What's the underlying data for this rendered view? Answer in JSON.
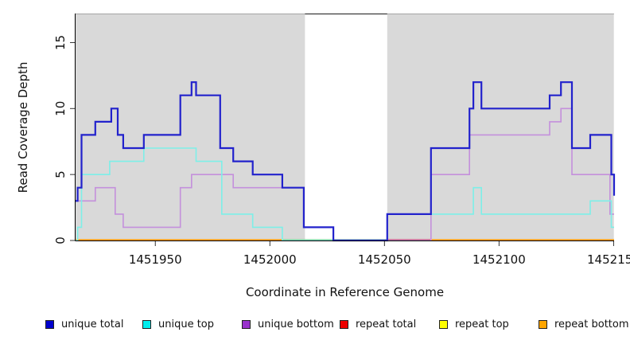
{
  "axes": {
    "x_label": "Coordinate in Reference Genome",
    "y_label": "Read Coverage Depth",
    "x_tick_labels": [
      "1451950",
      "1452000",
      "1452050",
      "1452100",
      "1452150"
    ],
    "x_tick_values": [
      1451950,
      1452000,
      1452050,
      1452100,
      1452150
    ],
    "y_tick_labels": [
      "0",
      "5",
      "10",
      "15"
    ],
    "y_tick_values": [
      0,
      5,
      10,
      15
    ]
  },
  "legend": {
    "items": [
      {
        "label": "unique total",
        "color": "#0000CD"
      },
      {
        "label": "unique top",
        "color": "#00EEEE"
      },
      {
        "label": "unique bottom",
        "color": "#9932CC"
      },
      {
        "label": "repeat total",
        "color": "#EE0000"
      },
      {
        "label": "repeat top",
        "color": "#FFFF00"
      },
      {
        "label": "repeat bottom",
        "color": "#FFA500"
      }
    ]
  },
  "chart_data": {
    "type": "line",
    "subtype": "step-coverage",
    "x_range": {
      "min": 1451915.2,
      "max": 1452150.2
    },
    "y_range": {
      "min": 0,
      "max": 17.2
    },
    "grid": false,
    "plot_background": "#ffffff",
    "shaded_regions": [
      {
        "from": 1451915.2,
        "to": 1452015.3,
        "color": "#D9D9D9"
      },
      {
        "from": 1452051.2,
        "to": 1452150.1,
        "color": "#D9D9D9"
      }
    ],
    "unshaded_gap": {
      "from": 1452015.3,
      "to": 1452051.2
    },
    "baseline_segments": [
      {
        "from": 1451915.2,
        "to": 1452005.4,
        "color": "#FF9900"
      },
      {
        "from": 1452005.4,
        "to": 1452051.2,
        "color": "#82C982"
      },
      {
        "from": 1452051.2,
        "to": 1452070.3,
        "color": "#CC4466"
      },
      {
        "from": 1452070.3,
        "to": 1452150.3,
        "color": "#FF9900"
      }
    ],
    "series": [
      {
        "name": "unique bottom",
        "color": "#C490DC",
        "width": 1.6,
        "end": 1452150.2,
        "steps": [
          [
            1451915.2,
            3
          ],
          [
            1451923.8,
            4
          ],
          [
            1451932.5,
            2
          ],
          [
            1451936.0,
            1
          ],
          [
            1451960.9,
            4
          ],
          [
            1451965.8,
            5
          ],
          [
            1451984.0,
            4
          ],
          [
            1452014.8,
            1
          ],
          [
            1452027.7,
            0
          ],
          [
            1452070.3,
            5
          ],
          [
            1452087.1,
            8
          ],
          [
            1452122.1,
            9
          ],
          [
            1452127.0,
            10
          ],
          [
            1452131.8,
            5
          ],
          [
            1452148.4,
            2
          ]
        ]
      },
      {
        "name": "unique top",
        "color": "#7DEFE8",
        "width": 1.6,
        "end": 1452150.2,
        "steps": [
          [
            1451915.2,
            0
          ],
          [
            1451916.1,
            1
          ],
          [
            1451917.8,
            5
          ],
          [
            1451930.1,
            6
          ],
          [
            1451945.0,
            7
          ],
          [
            1451967.8,
            6
          ],
          [
            1451979.0,
            2
          ],
          [
            1451992.5,
            1
          ],
          [
            1452005.4,
            0
          ],
          [
            1452051.2,
            2
          ],
          [
            1452088.8,
            4
          ],
          [
            1452092.3,
            2
          ],
          [
            1452139.8,
            3
          ],
          [
            1452149.0,
            1
          ]
        ]
      },
      {
        "name": "unique total",
        "color": "#2222CC",
        "width": 2.2,
        "end": 1452150.2,
        "steps": [
          [
            1451915.2,
            3
          ],
          [
            1451916.1,
            4
          ],
          [
            1451917.8,
            8
          ],
          [
            1451923.8,
            9
          ],
          [
            1451930.8,
            10
          ],
          [
            1451933.6,
            8
          ],
          [
            1451936.0,
            7
          ],
          [
            1451945.0,
            8
          ],
          [
            1451960.9,
            11
          ],
          [
            1451965.8,
            12
          ],
          [
            1451967.8,
            11
          ],
          [
            1451978.3,
            7
          ],
          [
            1451984.0,
            6
          ],
          [
            1451992.5,
            5
          ],
          [
            1452005.4,
            4
          ],
          [
            1452014.8,
            1
          ],
          [
            1452027.7,
            0
          ],
          [
            1452051.2,
            2
          ],
          [
            1452070.3,
            7
          ],
          [
            1452087.1,
            10
          ],
          [
            1452088.8,
            12
          ],
          [
            1452092.3,
            10
          ],
          [
            1452122.1,
            11
          ],
          [
            1452127.0,
            12
          ],
          [
            1452131.8,
            7
          ],
          [
            1452139.8,
            8
          ],
          [
            1452149.0,
            5
          ],
          [
            1452150.2,
            3.4
          ]
        ]
      }
    ]
  }
}
